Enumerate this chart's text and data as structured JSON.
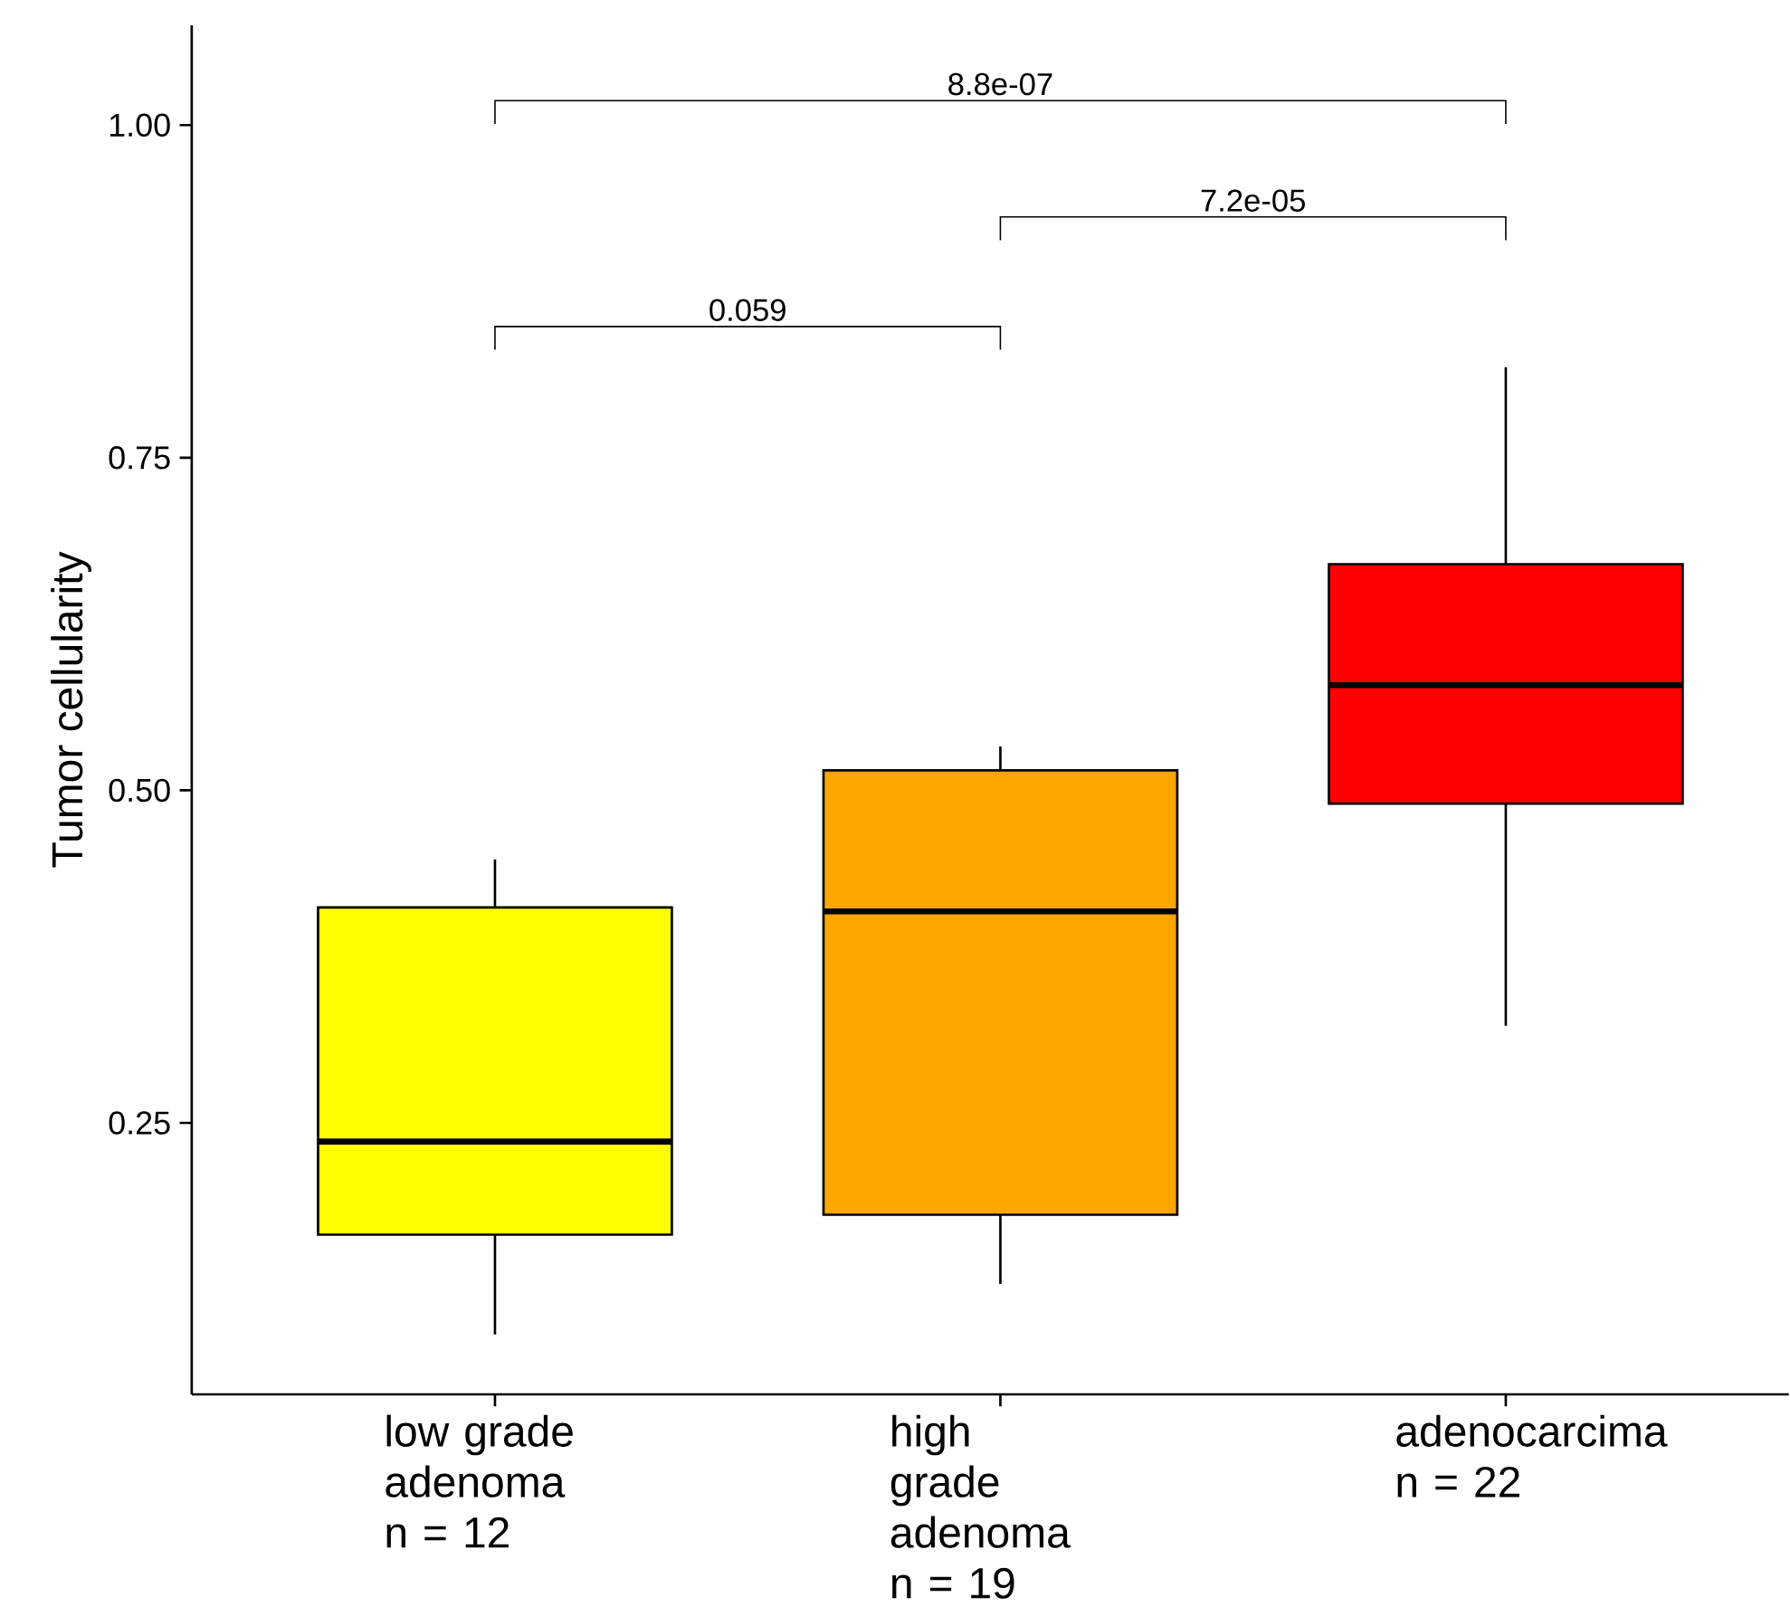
{
  "chart_data": {
    "type": "box",
    "ylabel": "Tumor cellularity",
    "categories": [
      "low grade adenoma n = 12",
      "high grade adenoma n = 19",
      "adenocarcima n = 22"
    ],
    "boxes": [
      {
        "low": 0.091,
        "q1": 0.166,
        "median": 0.236,
        "q3": 0.412,
        "high": 0.448
      },
      {
        "low": 0.129,
        "q1": 0.181,
        "median": 0.409,
        "q3": 0.515,
        "high": 0.533
      },
      {
        "low": 0.323,
        "q1": 0.49,
        "median": 0.579,
        "q3": 0.67,
        "high": 0.818
      }
    ],
    "colors": [
      "#ffff00",
      "#ffa500",
      "#ff0000"
    ],
    "ylim": [
      0.046,
      1.075
    ],
    "yticks": [
      {
        "value": 0.25,
        "label": "0.25"
      },
      {
        "value": 0.5,
        "label": "0.50"
      },
      {
        "value": 0.75,
        "label": "0.75"
      },
      {
        "value": 1.0,
        "label": "1.00"
      }
    ],
    "annotations": [
      "0.059",
      "7.2e-05",
      "8.8e-07"
    ]
  }
}
